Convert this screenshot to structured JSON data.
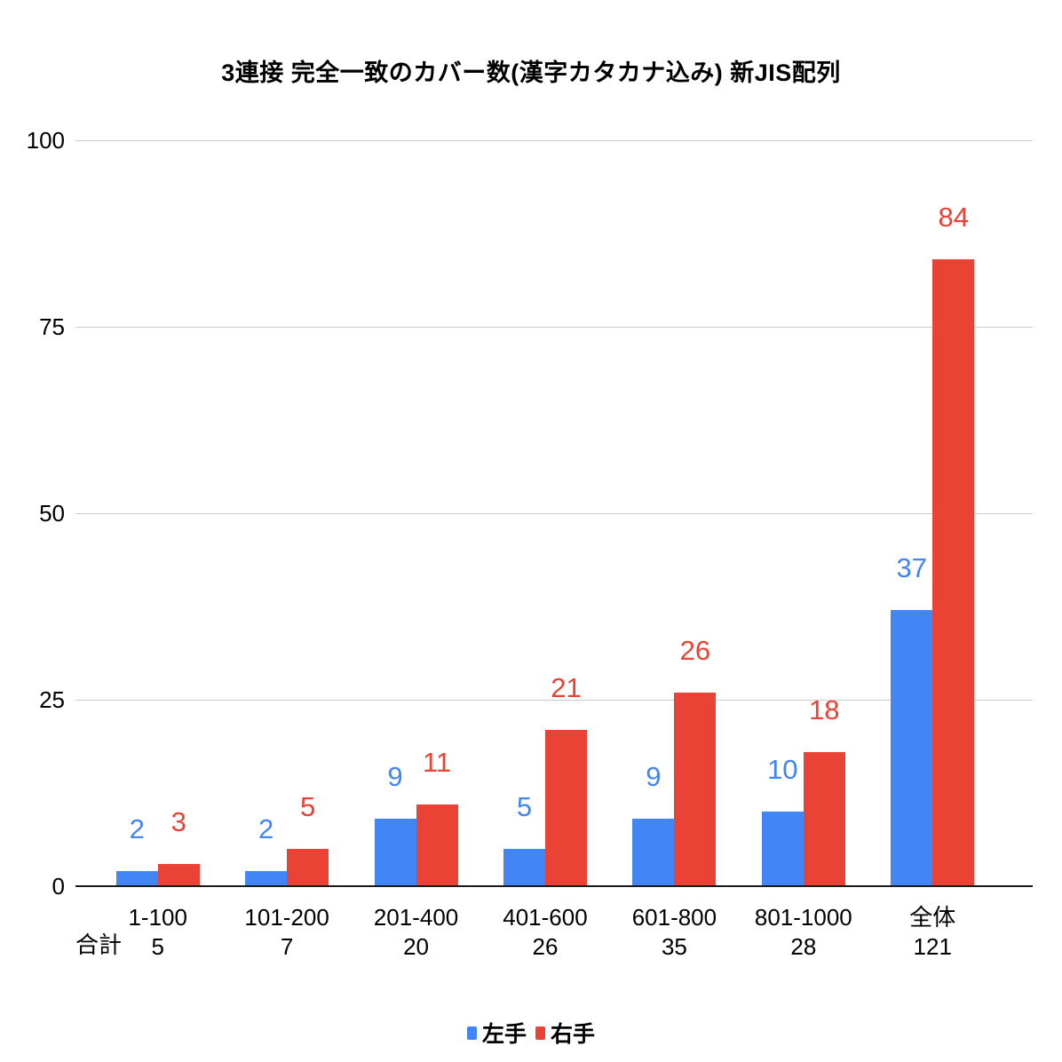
{
  "title": "3連接 完全一致のカバー数(漢字カタカナ込み) 新JIS配列",
  "chart_data": {
    "type": "bar",
    "title": "3連接 完全一致のカバー数(漢字カタカナ込み) 新JIS配列",
    "categories": [
      "1-100",
      "101-200",
      "201-400",
      "401-600",
      "601-800",
      "801-1000",
      "全体"
    ],
    "series": [
      {
        "name": "左手",
        "color": "#4285F4",
        "values": [
          2,
          2,
          9,
          5,
          9,
          10,
          37
        ]
      },
      {
        "name": "右手",
        "color": "#EA4335",
        "values": [
          3,
          5,
          11,
          21,
          26,
          18,
          84
        ]
      }
    ],
    "totals_row": {
      "label": "合計",
      "values": [
        5,
        7,
        20,
        26,
        35,
        28,
        121
      ]
    },
    "xlabel": "",
    "ylabel": "",
    "ylim": [
      0,
      100
    ],
    "yticks": [
      0,
      25,
      50,
      75,
      100
    ],
    "grid": true,
    "legend_position": "bottom",
    "data_labels": true
  },
  "colors": {
    "left_hand": "#4285F4",
    "right_hand": "#EA4335",
    "gridline": "#cccccc",
    "axis_line": "#1a1a1a",
    "text": "#000000"
  }
}
